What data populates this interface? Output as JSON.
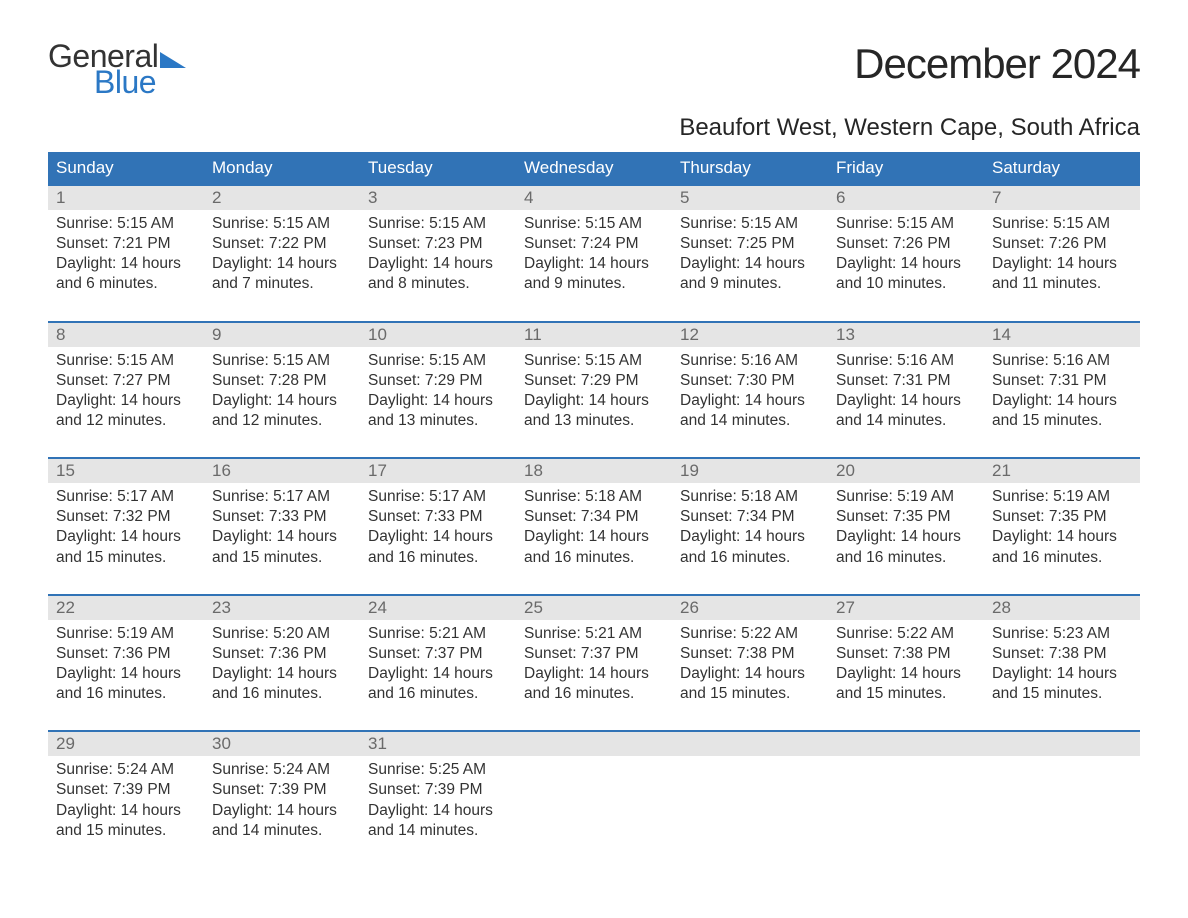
{
  "brand": {
    "general": "General",
    "blue": "Blue",
    "flag_color": "#2b78c5"
  },
  "title": "December 2024",
  "location": "Beaufort West, Western Cape, South Africa",
  "colors": {
    "header_bg": "#3173b6",
    "header_text": "#ffffff",
    "daynum_bg": "#e5e5e5",
    "daynum_text": "#6a6a6a",
    "body_text": "#333333",
    "week_border": "#3173b6",
    "background": "#ffffff"
  },
  "typography": {
    "title_fontsize": 42,
    "location_fontsize": 24,
    "header_fontsize": 17,
    "daynum_fontsize": 17,
    "body_fontsize": 15.5
  },
  "day_headers": [
    "Sunday",
    "Monday",
    "Tuesday",
    "Wednesday",
    "Thursday",
    "Friday",
    "Saturday"
  ],
  "weeks": [
    [
      {
        "n": "1",
        "sunrise": "Sunrise: 5:15 AM",
        "sunset": "Sunset: 7:21 PM",
        "dl1": "Daylight: 14 hours",
        "dl2": "and 6 minutes."
      },
      {
        "n": "2",
        "sunrise": "Sunrise: 5:15 AM",
        "sunset": "Sunset: 7:22 PM",
        "dl1": "Daylight: 14 hours",
        "dl2": "and 7 minutes."
      },
      {
        "n": "3",
        "sunrise": "Sunrise: 5:15 AM",
        "sunset": "Sunset: 7:23 PM",
        "dl1": "Daylight: 14 hours",
        "dl2": "and 8 minutes."
      },
      {
        "n": "4",
        "sunrise": "Sunrise: 5:15 AM",
        "sunset": "Sunset: 7:24 PM",
        "dl1": "Daylight: 14 hours",
        "dl2": "and 9 minutes."
      },
      {
        "n": "5",
        "sunrise": "Sunrise: 5:15 AM",
        "sunset": "Sunset: 7:25 PM",
        "dl1": "Daylight: 14 hours",
        "dl2": "and 9 minutes."
      },
      {
        "n": "6",
        "sunrise": "Sunrise: 5:15 AM",
        "sunset": "Sunset: 7:26 PM",
        "dl1": "Daylight: 14 hours",
        "dl2": "and 10 minutes."
      },
      {
        "n": "7",
        "sunrise": "Sunrise: 5:15 AM",
        "sunset": "Sunset: 7:26 PM",
        "dl1": "Daylight: 14 hours",
        "dl2": "and 11 minutes."
      }
    ],
    [
      {
        "n": "8",
        "sunrise": "Sunrise: 5:15 AM",
        "sunset": "Sunset: 7:27 PM",
        "dl1": "Daylight: 14 hours",
        "dl2": "and 12 minutes."
      },
      {
        "n": "9",
        "sunrise": "Sunrise: 5:15 AM",
        "sunset": "Sunset: 7:28 PM",
        "dl1": "Daylight: 14 hours",
        "dl2": "and 12 minutes."
      },
      {
        "n": "10",
        "sunrise": "Sunrise: 5:15 AM",
        "sunset": "Sunset: 7:29 PM",
        "dl1": "Daylight: 14 hours",
        "dl2": "and 13 minutes."
      },
      {
        "n": "11",
        "sunrise": "Sunrise: 5:15 AM",
        "sunset": "Sunset: 7:29 PM",
        "dl1": "Daylight: 14 hours",
        "dl2": "and 13 minutes."
      },
      {
        "n": "12",
        "sunrise": "Sunrise: 5:16 AM",
        "sunset": "Sunset: 7:30 PM",
        "dl1": "Daylight: 14 hours",
        "dl2": "and 14 minutes."
      },
      {
        "n": "13",
        "sunrise": "Sunrise: 5:16 AM",
        "sunset": "Sunset: 7:31 PM",
        "dl1": "Daylight: 14 hours",
        "dl2": "and 14 minutes."
      },
      {
        "n": "14",
        "sunrise": "Sunrise: 5:16 AM",
        "sunset": "Sunset: 7:31 PM",
        "dl1": "Daylight: 14 hours",
        "dl2": "and 15 minutes."
      }
    ],
    [
      {
        "n": "15",
        "sunrise": "Sunrise: 5:17 AM",
        "sunset": "Sunset: 7:32 PM",
        "dl1": "Daylight: 14 hours",
        "dl2": "and 15 minutes."
      },
      {
        "n": "16",
        "sunrise": "Sunrise: 5:17 AM",
        "sunset": "Sunset: 7:33 PM",
        "dl1": "Daylight: 14 hours",
        "dl2": "and 15 minutes."
      },
      {
        "n": "17",
        "sunrise": "Sunrise: 5:17 AM",
        "sunset": "Sunset: 7:33 PM",
        "dl1": "Daylight: 14 hours",
        "dl2": "and 16 minutes."
      },
      {
        "n": "18",
        "sunrise": "Sunrise: 5:18 AM",
        "sunset": "Sunset: 7:34 PM",
        "dl1": "Daylight: 14 hours",
        "dl2": "and 16 minutes."
      },
      {
        "n": "19",
        "sunrise": "Sunrise: 5:18 AM",
        "sunset": "Sunset: 7:34 PM",
        "dl1": "Daylight: 14 hours",
        "dl2": "and 16 minutes."
      },
      {
        "n": "20",
        "sunrise": "Sunrise: 5:19 AM",
        "sunset": "Sunset: 7:35 PM",
        "dl1": "Daylight: 14 hours",
        "dl2": "and 16 minutes."
      },
      {
        "n": "21",
        "sunrise": "Sunrise: 5:19 AM",
        "sunset": "Sunset: 7:35 PM",
        "dl1": "Daylight: 14 hours",
        "dl2": "and 16 minutes."
      }
    ],
    [
      {
        "n": "22",
        "sunrise": "Sunrise: 5:19 AM",
        "sunset": "Sunset: 7:36 PM",
        "dl1": "Daylight: 14 hours",
        "dl2": "and 16 minutes."
      },
      {
        "n": "23",
        "sunrise": "Sunrise: 5:20 AM",
        "sunset": "Sunset: 7:36 PM",
        "dl1": "Daylight: 14 hours",
        "dl2": "and 16 minutes."
      },
      {
        "n": "24",
        "sunrise": "Sunrise: 5:21 AM",
        "sunset": "Sunset: 7:37 PM",
        "dl1": "Daylight: 14 hours",
        "dl2": "and 16 minutes."
      },
      {
        "n": "25",
        "sunrise": "Sunrise: 5:21 AM",
        "sunset": "Sunset: 7:37 PM",
        "dl1": "Daylight: 14 hours",
        "dl2": "and 16 minutes."
      },
      {
        "n": "26",
        "sunrise": "Sunrise: 5:22 AM",
        "sunset": "Sunset: 7:38 PM",
        "dl1": "Daylight: 14 hours",
        "dl2": "and 15 minutes."
      },
      {
        "n": "27",
        "sunrise": "Sunrise: 5:22 AM",
        "sunset": "Sunset: 7:38 PM",
        "dl1": "Daylight: 14 hours",
        "dl2": "and 15 minutes."
      },
      {
        "n": "28",
        "sunrise": "Sunrise: 5:23 AM",
        "sunset": "Sunset: 7:38 PM",
        "dl1": "Daylight: 14 hours",
        "dl2": "and 15 minutes."
      }
    ],
    [
      {
        "n": "29",
        "sunrise": "Sunrise: 5:24 AM",
        "sunset": "Sunset: 7:39 PM",
        "dl1": "Daylight: 14 hours",
        "dl2": "and 15 minutes."
      },
      {
        "n": "30",
        "sunrise": "Sunrise: 5:24 AM",
        "sunset": "Sunset: 7:39 PM",
        "dl1": "Daylight: 14 hours",
        "dl2": "and 14 minutes."
      },
      {
        "n": "31",
        "sunrise": "Sunrise: 5:25 AM",
        "sunset": "Sunset: 7:39 PM",
        "dl1": "Daylight: 14 hours",
        "dl2": "and 14 minutes."
      },
      null,
      null,
      null,
      null
    ]
  ]
}
